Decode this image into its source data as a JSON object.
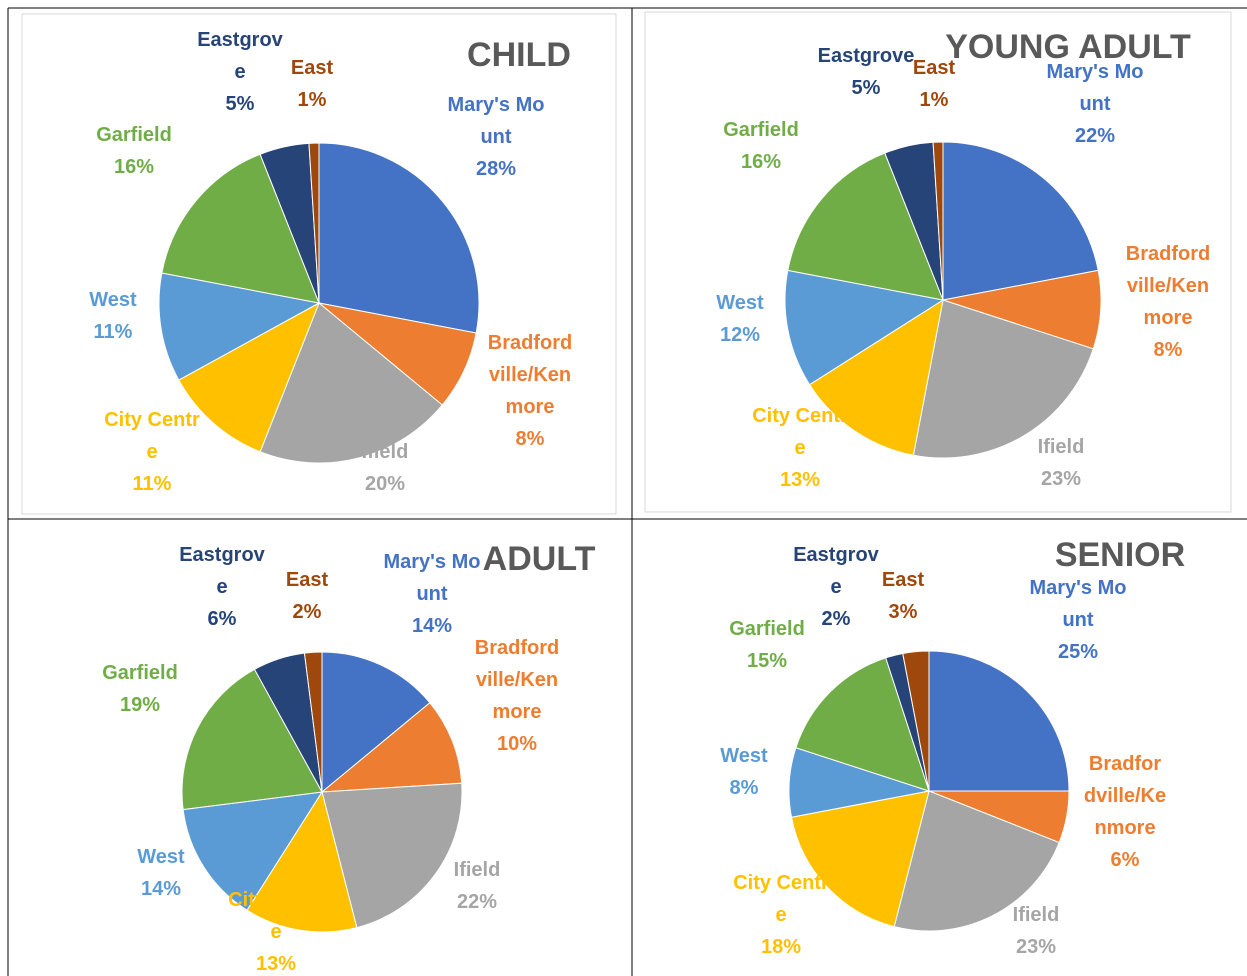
{
  "chart_data": [
    {
      "type": "pie",
      "title": "CHILD",
      "categories": [
        "Mary's Mount",
        "Bradfordville/Kenmore",
        "Ifield",
        "City Centre",
        "West",
        "Garfield",
        "Eastgrove",
        "East"
      ],
      "values": [
        28,
        8,
        20,
        11,
        11,
        16,
        5,
        1
      ],
      "value_labels": [
        "28%",
        "8%",
        "20%",
        "11%",
        "11%",
        "16%",
        "5%",
        "1%"
      ],
      "colors": [
        "#4472c4",
        "#ed7d31",
        "#a5a5a5",
        "#ffc000",
        "#5b9bd5",
        "#70ad47",
        "#264478",
        "#9e480e"
      ]
    },
    {
      "type": "pie",
      "title": "YOUNG ADULT",
      "categories": [
        "Mary's Mount",
        "Bradfordville/Kenmore",
        "Ifield",
        "City Centre",
        "West",
        "Garfield",
        "Eastgrove",
        "East"
      ],
      "values": [
        22,
        8,
        23,
        13,
        12,
        16,
        5,
        1
      ],
      "value_labels": [
        "22%",
        "8%",
        "23%",
        "13%",
        "12%",
        "16%",
        "5%",
        "1%"
      ],
      "colors": [
        "#4472c4",
        "#ed7d31",
        "#a5a5a5",
        "#ffc000",
        "#5b9bd5",
        "#70ad47",
        "#264478",
        "#9e480e"
      ]
    },
    {
      "type": "pie",
      "title": "ADULT",
      "categories": [
        "Mary's Mount",
        "Bradfordville/Kenmore",
        "Ifield",
        "City Centre",
        "West",
        "Garfield",
        "Eastgrove",
        "East"
      ],
      "values": [
        14,
        10,
        22,
        13,
        14,
        19,
        6,
        2
      ],
      "value_labels": [
        "14%",
        "10%",
        "22%",
        "13%",
        "14%",
        "19%",
        "6%",
        "2%"
      ],
      "colors": [
        "#4472c4",
        "#ed7d31",
        "#a5a5a5",
        "#ffc000",
        "#5b9bd5",
        "#70ad47",
        "#264478",
        "#9e480e"
      ]
    },
    {
      "type": "pie",
      "title": "SENIOR",
      "categories": [
        "Mary's Mount",
        "Bradfordville/Kenmore",
        "Ifield",
        "City Centre",
        "West",
        "Garfield",
        "Eastgrove",
        "East"
      ],
      "values": [
        25,
        6,
        23,
        18,
        8,
        15,
        2,
        3
      ],
      "value_labels": [
        "25%",
        "6%",
        "23%",
        "18%",
        "8%",
        "15%",
        "2%",
        "3%"
      ],
      "colors": [
        "#4472c4",
        "#ed7d31",
        "#a5a5a5",
        "#ffc000",
        "#5b9bd5",
        "#70ad47",
        "#264478",
        "#9e480e"
      ]
    }
  ]
}
